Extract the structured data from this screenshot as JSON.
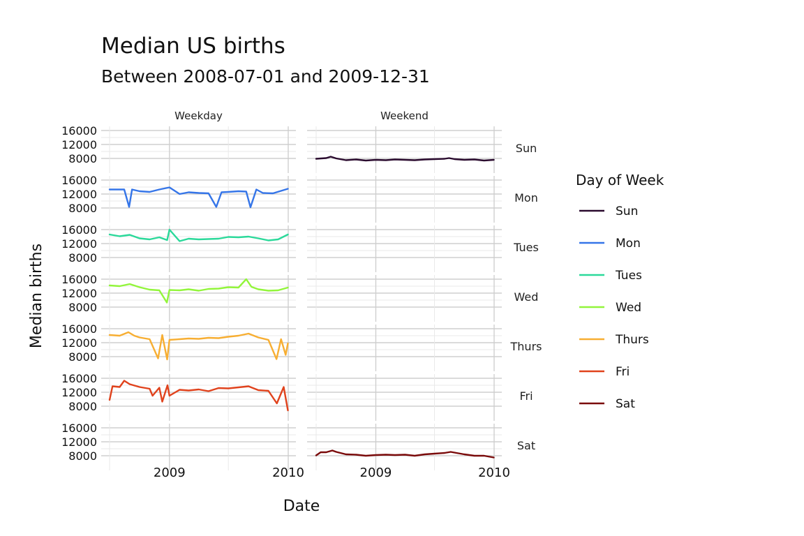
{
  "chart_data": {
    "type": "line",
    "title": "Median US births",
    "subtitle": "Between 2008-07-01 and 2009-12-31",
    "xlabel": "Date",
    "ylabel": "Median births",
    "x_range": [
      "2008-07-01",
      "2009-12-31"
    ],
    "x_ticks": [
      {
        "label": "2009",
        "date": "2009-01-01"
      },
      {
        "label": "2010",
        "date": "2010-01-01"
      }
    ],
    "y_ticks": [
      8000,
      12000,
      16000
    ],
    "ylim": [
      6000,
      17000
    ],
    "grid": true,
    "facet_columns": [
      "Weekday",
      "Weekend"
    ],
    "legend": {
      "title": "Day of Week",
      "position": "right"
    },
    "series": [
      {
        "name": "Sun",
        "facet_column": "Weekend",
        "color": "#2a0a2e",
        "dates": [
          "2008-07-01",
          "2008-08-01",
          "2008-08-15",
          "2008-09-01",
          "2008-10-01",
          "2008-11-01",
          "2008-12-01",
          "2009-01-01",
          "2009-02-01",
          "2009-03-01",
          "2009-04-01",
          "2009-05-01",
          "2009-06-01",
          "2009-07-01",
          "2009-08-01",
          "2009-08-15",
          "2009-09-01",
          "2009-10-01",
          "2009-11-01",
          "2009-12-01",
          "2009-12-31"
        ],
        "values": [
          7900,
          8100,
          8500,
          8000,
          7500,
          7700,
          7400,
          7600,
          7500,
          7700,
          7600,
          7500,
          7700,
          7800,
          7900,
          8100,
          7800,
          7600,
          7700,
          7400,
          7600
        ]
      },
      {
        "name": "Mon",
        "facet_column": "Weekday",
        "color": "#3575e8",
        "dates": [
          "2008-07-01",
          "2008-08-15",
          "2008-08-30",
          "2008-09-08",
          "2008-10-01",
          "2008-11-01",
          "2008-12-01",
          "2009-01-01",
          "2009-02-01",
          "2009-03-01",
          "2009-04-01",
          "2009-05-01",
          "2009-05-25",
          "2009-06-10",
          "2009-07-01",
          "2009-08-01",
          "2009-08-25",
          "2009-09-07",
          "2009-09-25",
          "2009-10-15",
          "2009-11-15",
          "2009-12-31"
        ],
        "values": [
          13300,
          13300,
          8300,
          13300,
          12800,
          12600,
          13300,
          13900,
          12000,
          12500,
          12300,
          12200,
          8300,
          12500,
          12600,
          12800,
          12700,
          8200,
          13300,
          12300,
          12200,
          13500
        ]
      },
      {
        "name": "Tues",
        "facet_column": "Weekday",
        "color": "#2bd99a",
        "dates": [
          "2008-07-01",
          "2008-08-01",
          "2008-09-01",
          "2008-10-01",
          "2008-11-01",
          "2008-12-01",
          "2008-12-25",
          "2009-01-01",
          "2009-02-01",
          "2009-03-01",
          "2009-04-01",
          "2009-05-01",
          "2009-06-01",
          "2009-07-01",
          "2009-08-01",
          "2009-09-01",
          "2009-10-01",
          "2009-11-01",
          "2009-12-01",
          "2009-12-31"
        ],
        "values": [
          14600,
          14100,
          14500,
          13500,
          13200,
          13800,
          13000,
          16000,
          12700,
          13400,
          13200,
          13300,
          13400,
          13900,
          13800,
          14000,
          13500,
          12900,
          13200,
          14600
        ]
      },
      {
        "name": "Wed",
        "facet_column": "Weekday",
        "color": "#92f53b",
        "dates": [
          "2008-07-01",
          "2008-08-01",
          "2008-09-01",
          "2008-10-01",
          "2008-11-01",
          "2008-12-01",
          "2008-12-24",
          "2009-01-01",
          "2009-02-01",
          "2009-03-01",
          "2009-04-01",
          "2009-05-01",
          "2009-06-01",
          "2009-07-01",
          "2009-08-01",
          "2009-08-25",
          "2009-09-10",
          "2009-10-01",
          "2009-11-01",
          "2009-12-01",
          "2009-12-31"
        ],
        "values": [
          14200,
          14000,
          14600,
          13700,
          13000,
          12800,
          9300,
          12900,
          12800,
          13100,
          12700,
          13200,
          13300,
          13700,
          13600,
          16000,
          13800,
          13100,
          12700,
          12800,
          13600
        ]
      },
      {
        "name": "Thurs",
        "facet_column": "Weekday",
        "color": "#f7ae32",
        "dates": [
          "2008-07-01",
          "2008-08-01",
          "2008-08-28",
          "2008-09-15",
          "2008-10-01",
          "2008-11-01",
          "2008-11-27",
          "2008-12-10",
          "2008-12-25",
          "2009-01-01",
          "2009-02-01",
          "2009-03-01",
          "2009-04-01",
          "2009-05-01",
          "2009-06-01",
          "2009-07-01",
          "2009-08-01",
          "2009-09-01",
          "2009-10-01",
          "2009-11-01",
          "2009-11-26",
          "2009-12-10",
          "2009-12-24",
          "2009-12-31"
        ],
        "values": [
          14200,
          14000,
          15000,
          14000,
          13500,
          13000,
          7500,
          14200,
          7200,
          12800,
          13000,
          13200,
          13100,
          13400,
          13300,
          13700,
          14000,
          14600,
          13500,
          12800,
          7300,
          13000,
          8500,
          11800
        ]
      },
      {
        "name": "Fri",
        "facet_column": "Weekday",
        "color": "#e0421c",
        "dates": [
          "2008-07-01",
          "2008-07-10",
          "2008-08-01",
          "2008-08-15",
          "2008-09-01",
          "2008-10-01",
          "2008-11-01",
          "2008-11-10",
          "2008-12-01",
          "2008-12-10",
          "2008-12-26",
          "2009-01-01",
          "2009-02-01",
          "2009-03-01",
          "2009-04-01",
          "2009-05-01",
          "2009-06-01",
          "2009-07-01",
          "2009-08-01",
          "2009-09-01",
          "2009-10-01",
          "2009-11-01",
          "2009-11-27",
          "2009-12-18",
          "2009-12-31"
        ],
        "values": [
          9800,
          13700,
          13500,
          15300,
          14300,
          13500,
          13000,
          11000,
          13300,
          9300,
          14000,
          11000,
          12700,
          12500,
          12800,
          12300,
          13200,
          13100,
          13400,
          13700,
          12600,
          12400,
          8800,
          13500,
          6800
        ]
      },
      {
        "name": "Sat",
        "facet_column": "Weekend",
        "color": "#7a0a0a",
        "dates": [
          "2008-07-01",
          "2008-07-15",
          "2008-08-01",
          "2008-08-20",
          "2008-09-01",
          "2008-10-01",
          "2008-11-01",
          "2008-12-01",
          "2009-01-01",
          "2009-02-01",
          "2009-03-01",
          "2009-04-01",
          "2009-05-01",
          "2009-06-01",
          "2009-07-01",
          "2009-08-01",
          "2009-08-20",
          "2009-09-01",
          "2009-10-01",
          "2009-11-01",
          "2009-12-01",
          "2009-12-31"
        ],
        "values": [
          8100,
          9000,
          9000,
          9500,
          9100,
          8400,
          8300,
          8000,
          8200,
          8300,
          8200,
          8300,
          8000,
          8400,
          8600,
          8800,
          9100,
          8900,
          8400,
          8000,
          8000,
          7500
        ]
      }
    ]
  }
}
